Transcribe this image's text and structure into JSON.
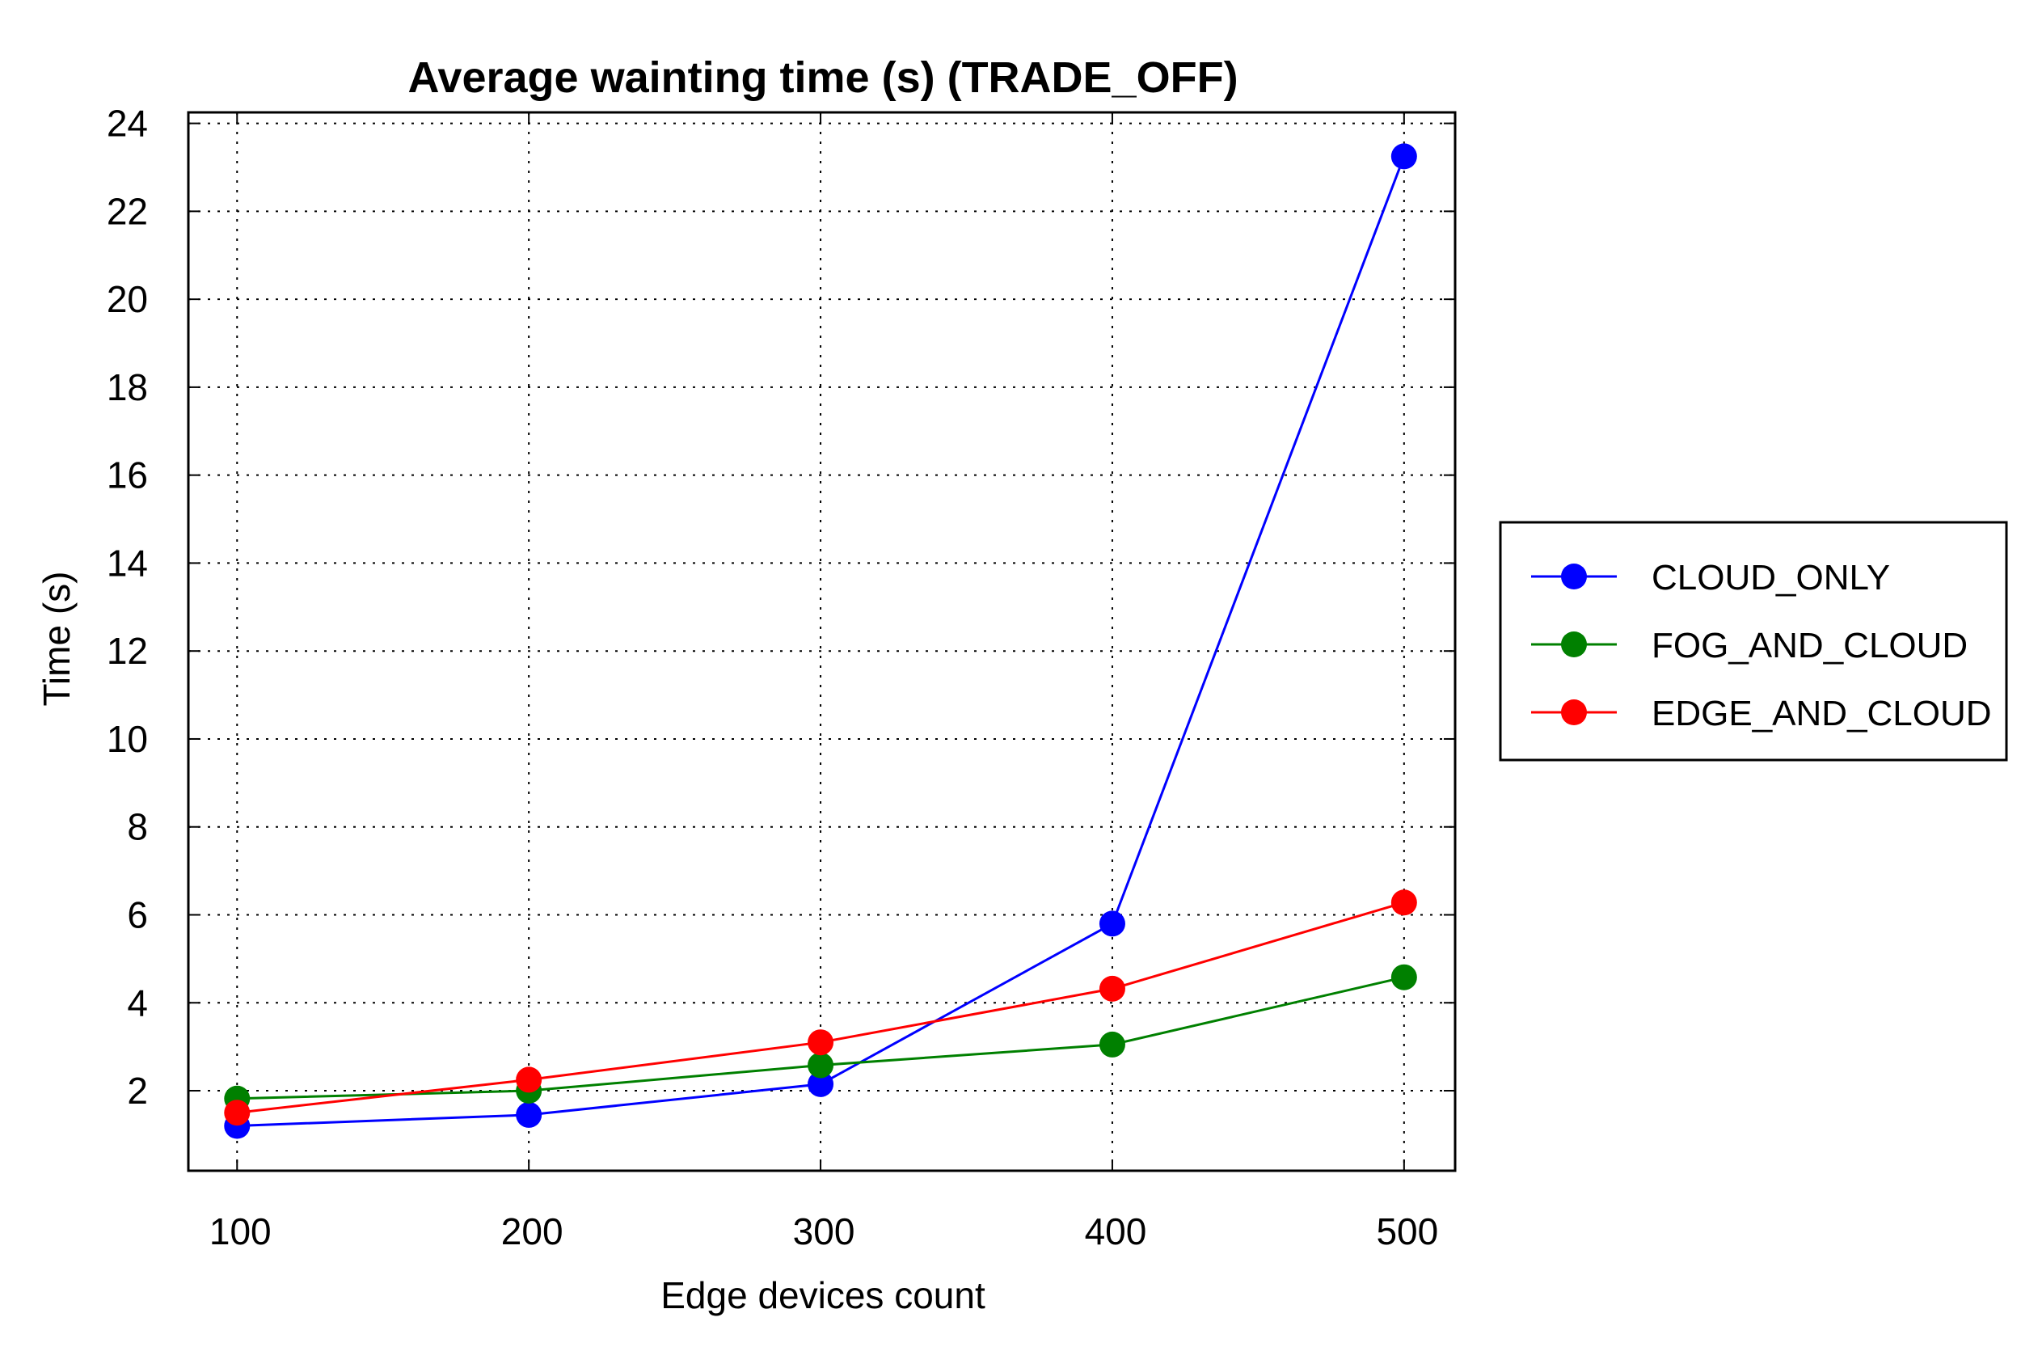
{
  "chart_data": {
    "type": "line",
    "title": "Average wainting time (s) (TRADE_OFF)",
    "xlabel": "Edge devices count",
    "ylabel": "Time (s)",
    "x": [
      100,
      200,
      300,
      400,
      500
    ],
    "xlim": [
      83.3,
      517.5
    ],
    "ylim": [
      0.18,
      24.25
    ],
    "yticks": [
      2,
      4,
      6,
      8,
      10,
      12,
      14,
      16,
      18,
      20,
      22,
      24
    ],
    "grid": true,
    "legend_position": "right",
    "series": [
      {
        "name": "CLOUD_ONLY",
        "color": "#0000ff",
        "marker": "circle",
        "values": [
          1.2,
          1.45,
          2.15,
          5.8,
          23.25
        ]
      },
      {
        "name": "FOG_AND_CLOUD",
        "color": "#008000",
        "marker": "circle",
        "values": [
          1.82,
          2.0,
          2.58,
          3.05,
          4.58
        ]
      },
      {
        "name": "EDGE_AND_CLOUD",
        "color": "#ff0000",
        "marker": "circle",
        "values": [
          1.5,
          2.25,
          3.1,
          4.32,
          6.28
        ]
      }
    ]
  }
}
